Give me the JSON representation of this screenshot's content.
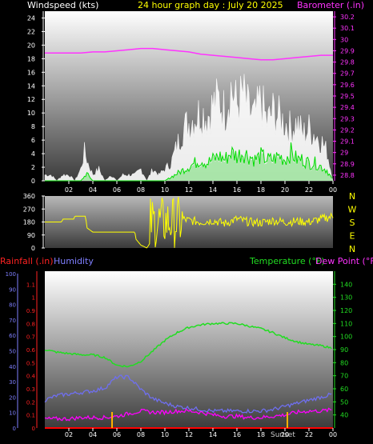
{
  "header": {
    "wind_label": "Windspeed (kts)",
    "title": "24 hour graph day : July 20 2025",
    "baro_label": "Barometer (.in)"
  },
  "wind_panel": {
    "y_ticks": [
      "0",
      "2",
      "4",
      "6",
      "8",
      "10",
      "12",
      "14",
      "16",
      "18",
      "20",
      "22",
      "24"
    ],
    "baro_ticks": [
      "28.8",
      "28.9",
      "29",
      "29.1",
      "29.2",
      "29.3",
      "29.4",
      "29.5",
      "29.6",
      "29.7",
      "29.8",
      "29.9",
      "30",
      "30.1",
      "30.2"
    ]
  },
  "x_ticks": [
    "02",
    "04",
    "06",
    "08",
    "10",
    "12",
    "14",
    "16",
    "18",
    "20",
    "22",
    "00"
  ],
  "dir_panel": {
    "y_ticks": [
      "0",
      "90",
      "180",
      "270",
      "360"
    ],
    "compass": [
      "N",
      "W",
      "S",
      "E",
      "N"
    ]
  },
  "lower_panel": {
    "rain_label": "Rainfall (.in)",
    "hum_label": "Humidity",
    "temp_label": "Temperature (°F)",
    "dew_label": "Dew Point (°F)",
    "rain_ticks": [
      "0",
      "0.1",
      "0.2",
      "0.3",
      "0.4",
      "0.5",
      "0.6",
      "0.7",
      "0.8",
      "0.9",
      "1",
      "1.1"
    ],
    "hum_ticks": [
      "0",
      "10",
      "20",
      "30",
      "40",
      "50",
      "60",
      "70",
      "80",
      "90",
      "100"
    ],
    "temp_ticks": [
      "40",
      "50",
      "60",
      "70",
      "80",
      "90",
      "100",
      "110",
      "120",
      "130",
      "140"
    ],
    "sunset_label": "Sunset"
  },
  "colors": {
    "wind_gust": "#ffffff",
    "wind_avg": "#00dd00",
    "wind_fill": "#9ee39e",
    "barometer": "#ff33ff",
    "direction": "#ffff00",
    "temperature": "#22dd22",
    "humidity": "#6f6ff0",
    "dewpoint": "#ff00ff",
    "rain": "#ff0000",
    "sun": "#ffb000"
  },
  "chart_data": [
    {
      "type": "line",
      "title": "24 hour graph day : July 20 2025",
      "xlabel": "",
      "ylabel": "Windspeed (kts)",
      "xlim": [
        0,
        24
      ],
      "ylim": [
        0,
        25
      ],
      "y2label": "Barometer (.in)",
      "y2lim": [
        28.75,
        30.25
      ],
      "grid": false,
      "series": [
        {
          "name": "gust",
          "x": [
            0,
            0.5,
            1,
            1.5,
            2,
            2.5,
            3,
            3.3,
            3.6,
            4,
            4.5,
            5,
            5.5,
            6,
            6.5,
            7,
            7.5,
            8,
            8.5,
            9,
            9.5,
            10,
            10.5,
            11,
            11.5,
            12,
            12.5,
            13,
            13.5,
            14,
            14.5,
            15,
            15.5,
            16,
            16.5,
            17,
            17.5,
            18,
            18.5,
            19,
            19.5,
            20,
            20.5,
            21,
            21.5,
            22,
            22.5,
            23,
            23.5,
            24
          ],
          "values": [
            1,
            1,
            0,
            1,
            1,
            0,
            2,
            5,
            3,
            1,
            2,
            0,
            1,
            0,
            1,
            1,
            1,
            2,
            0,
            2,
            1,
            2,
            3,
            6,
            9,
            10,
            11,
            12,
            11,
            13,
            14,
            12,
            16,
            13,
            15,
            12,
            11,
            14,
            10,
            12,
            11,
            10,
            9,
            10,
            8,
            9,
            8,
            7,
            5,
            0
          ]
        },
        {
          "name": "average",
          "x": [
            0,
            1,
            2,
            3,
            3.5,
            4,
            5,
            6,
            7,
            8,
            9,
            10,
            10.5,
            11,
            11.5,
            12,
            12.5,
            13,
            13.5,
            14,
            14.5,
            15,
            15.5,
            16,
            16.5,
            17,
            17.5,
            18,
            18.5,
            19,
            19.5,
            20,
            20.5,
            21,
            21.5,
            22,
            22.5,
            23,
            23.5,
            24
          ],
          "values": [
            0,
            0,
            0,
            0,
            1,
            0,
            0,
            0,
            0,
            0,
            0,
            0,
            0.5,
            1,
            1.5,
            2,
            2.5,
            3,
            2.5,
            3,
            3.5,
            3,
            4,
            3.5,
            4,
            3.5,
            3,
            3.5,
            3,
            3,
            3.5,
            3,
            4,
            3,
            3,
            2.5,
            2.5,
            2,
            1.5,
            0
          ]
        },
        {
          "name": "barometer",
          "axis": "y2",
          "x": [
            0,
            1,
            2,
            3,
            4,
            5,
            6,
            7,
            8,
            9,
            10,
            11,
            12,
            13,
            14,
            15,
            16,
            17,
            18,
            19,
            20,
            21,
            22,
            23,
            24
          ],
          "values": [
            29.88,
            29.88,
            29.88,
            29.88,
            29.89,
            29.89,
            29.9,
            29.91,
            29.92,
            29.92,
            29.91,
            29.9,
            29.89,
            29.87,
            29.86,
            29.85,
            29.84,
            29.83,
            29.82,
            29.82,
            29.83,
            29.84,
            29.85,
            29.86,
            29.86
          ]
        }
      ]
    },
    {
      "type": "line",
      "ylabel": "",
      "xlim": [
        0,
        24
      ],
      "ylim": [
        0,
        360
      ],
      "series": [
        {
          "name": "direction",
          "x": [
            0,
            1,
            1.4,
            1.5,
            2,
            2.4,
            2.5,
            3,
            3.4,
            3.5,
            4,
            5,
            6,
            7,
            7.5,
            7.6,
            8,
            8.5,
            8.8,
            9,
            9.2,
            9.4,
            9.6,
            9.8,
            10,
            10.2,
            10.4,
            10.6,
            10.8,
            11,
            11.5,
            12,
            13,
            14,
            15,
            16,
            17,
            18,
            19,
            20,
            21,
            22,
            23,
            24
          ],
          "values": [
            180,
            180,
            180,
            200,
            200,
            200,
            220,
            220,
            220,
            140,
            110,
            110,
            110,
            110,
            110,
            60,
            20,
            0,
            40,
            150,
            340,
            60,
            360,
            80,
            320,
            120,
            300,
            170,
            250,
            180,
            200,
            190,
            180,
            190,
            170,
            200,
            180,
            175,
            190,
            180,
            185,
            180,
            200,
            220
          ]
        }
      ]
    },
    {
      "type": "line",
      "ylabel": "",
      "xlim": [
        0,
        24
      ],
      "ylim": [
        0,
        1.2
      ],
      "y_left_ticks_humidity": [
        0,
        100
      ],
      "y_right_temperature": [
        30,
        150
      ],
      "series": [
        {
          "name": "Temperature",
          "axis": "right",
          "x": [
            0,
            1,
            2,
            3,
            4,
            5,
            6,
            7,
            8,
            9,
            10,
            11,
            12,
            13,
            14,
            15,
            16,
            17,
            18,
            19,
            20,
            21,
            22,
            23,
            24
          ],
          "values": [
            90,
            88,
            87,
            86,
            86,
            84,
            78,
            77,
            81,
            89,
            97,
            103,
            107,
            109,
            110,
            110,
            110,
            108,
            106,
            103,
            99,
            96,
            94,
            93,
            91
          ]
        },
        {
          "name": "Humidity",
          "axis": "left",
          "x": [
            0,
            1,
            2,
            3,
            4,
            5,
            6,
            7,
            8,
            9,
            10,
            11,
            12,
            13,
            14,
            15,
            16,
            17,
            18,
            19,
            20,
            21,
            22,
            23,
            24
          ],
          "values": [
            18,
            21,
            22,
            23,
            24,
            26,
            33,
            33,
            25,
            19,
            16,
            14,
            13,
            12,
            11,
            11,
            11,
            11,
            11,
            12,
            14,
            16,
            18,
            20,
            22
          ]
        },
        {
          "name": "Dew Point",
          "axis": "right",
          "x": [
            0,
            1,
            2,
            3,
            4,
            5,
            6,
            7,
            8,
            9,
            10,
            11,
            12,
            13,
            14,
            15,
            16,
            17,
            18,
            19,
            20,
            21,
            22,
            23,
            24
          ],
          "values": [
            37,
            37,
            37,
            38,
            38,
            38,
            39,
            41,
            43,
            42,
            42,
            43,
            43,
            42,
            40,
            39,
            39,
            38,
            38,
            39,
            40,
            42,
            43,
            43,
            44
          ]
        },
        {
          "name": "Rainfall",
          "axis": "left",
          "x": [
            0,
            24
          ],
          "values": [
            0,
            0
          ]
        }
      ],
      "sunrise_hour": 5.6,
      "sunset_hour": 20.2
    }
  ]
}
